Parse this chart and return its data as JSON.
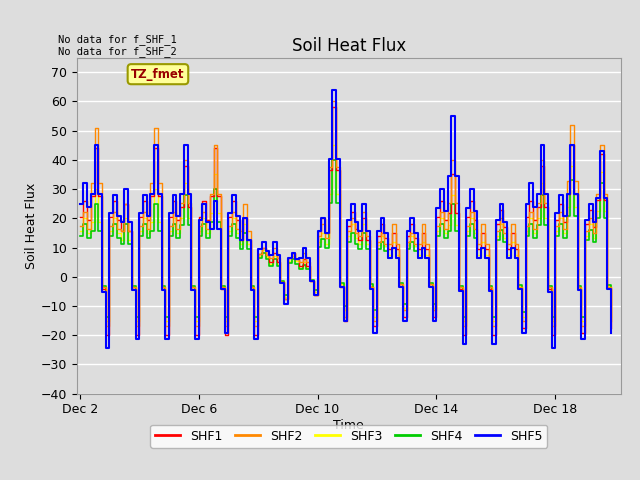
{
  "title": "Soil Heat Flux",
  "xlabel": "Time",
  "ylabel": "Soil Heat Flux",
  "ylim": [
    -40,
    75
  ],
  "yticks": [
    -40,
    -30,
    -20,
    -10,
    0,
    10,
    20,
    30,
    40,
    50,
    60,
    70
  ],
  "bg_color": "#dddddd",
  "plot_bg_color": "#dddddd",
  "annotation_top": "No data for f_SHF_1\nNo data for f_SHF_2",
  "annotation_box": "TZ_fmet",
  "legend_entries": [
    "SHF1",
    "SHF2",
    "SHF3",
    "SHF4",
    "SHF5"
  ],
  "legend_colors": [
    "#ff0000",
    "#ff8800",
    "#ffff00",
    "#00cc00",
    "#0000ff"
  ],
  "line_colors": {
    "SHF1": "#ff0000",
    "SHF2": "#ff8800",
    "SHF3": "#ffff00",
    "SHF4": "#00cc00",
    "SHF5": "#0000ff"
  },
  "xtick_labels": [
    "Dec 2",
    "Dec 6",
    "Dec 10",
    "Dec 14",
    "Dec 18"
  ],
  "xtick_positions": [
    2,
    6,
    10,
    14,
    18
  ],
  "xlim": [
    1.9,
    20.2
  ]
}
